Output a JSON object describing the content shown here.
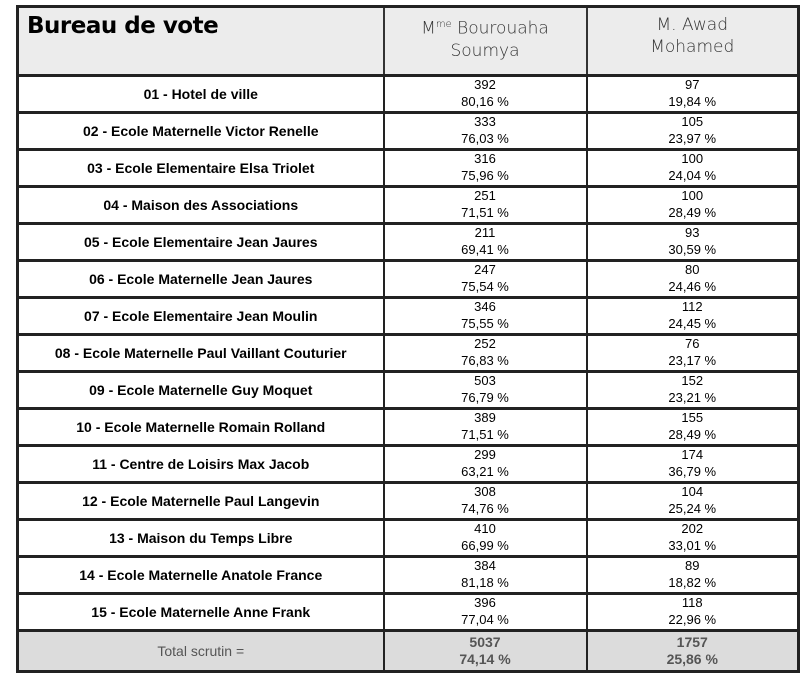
{
  "header": {
    "title": "Bureau de vote",
    "candidate1_prefix": "M",
    "candidate1_sup": "me",
    "candidate1_line1": " Bourouaha",
    "candidate1_line2": "Soumya",
    "candidate2_line1": "M. Awad",
    "candidate2_line2": "Mohamed"
  },
  "rows": [
    {
      "name": "01 - Hotel de ville",
      "v1": "392",
      "p1": "80,16 %",
      "v2": "97",
      "p2": "19,84 %"
    },
    {
      "name": "02 - Ecole Maternelle Victor Renelle",
      "v1": "333",
      "p1": "76,03 %",
      "v2": "105",
      "p2": "23,97 %"
    },
    {
      "name": "03 - Ecole Elementaire Elsa Triolet",
      "v1": "316",
      "p1": "75,96 %",
      "v2": "100",
      "p2": "24,04 %"
    },
    {
      "name": "04 - Maison des Associations",
      "v1": "251",
      "p1": "71,51 %",
      "v2": "100",
      "p2": "28,49 %"
    },
    {
      "name": "05 - Ecole Elementaire Jean Jaures",
      "v1": "211",
      "p1": "69,41 %",
      "v2": "93",
      "p2": "30,59 %"
    },
    {
      "name": "06 - Ecole Maternelle Jean Jaures",
      "v1": "247",
      "p1": "75,54 %",
      "v2": "80",
      "p2": "24,46 %"
    },
    {
      "name": "07 - Ecole Elementaire Jean Moulin",
      "v1": "346",
      "p1": "75,55 %",
      "v2": "112",
      "p2": "24,45 %"
    },
    {
      "name": "08 - Ecole Maternelle Paul Vaillant Couturier",
      "v1": "252",
      "p1": "76,83 %",
      "v2": "76",
      "p2": "23,17 %"
    },
    {
      "name": "09 - Ecole Maternelle Guy Moquet",
      "v1": "503",
      "p1": "76,79 %",
      "v2": "152",
      "p2": "23,21 %"
    },
    {
      "name": "10 - Ecole Maternelle Romain Rolland",
      "v1": "389",
      "p1": "71,51 %",
      "v2": "155",
      "p2": "28,49 %"
    },
    {
      "name": "11 - Centre de Loisirs Max Jacob",
      "v1": "299",
      "p1": "63,21 %",
      "v2": "174",
      "p2": "36,79 %"
    },
    {
      "name": "12 - Ecole Maternelle Paul Langevin",
      "v1": "308",
      "p1": "74,76 %",
      "v2": "104",
      "p2": "25,24 %"
    },
    {
      "name": "13 - Maison du Temps Libre",
      "v1": "410",
      "p1": "66,99 %",
      "v2": "202",
      "p2": "33,01 %"
    },
    {
      "name": "14 - Ecole Maternelle Anatole France",
      "v1": "384",
      "p1": "81,18 %",
      "v2": "89",
      "p2": "18,82 %"
    },
    {
      "name": "15 - Ecole Maternelle Anne Frank",
      "v1": "396",
      "p1": "77,04 %",
      "v2": "118",
      "p2": "22,96 %"
    }
  ],
  "total": {
    "label": "Total scrutin =",
    "v1": "5037",
    "p1": "74,14 %",
    "v2": "1757",
    "p2": "25,86 %"
  }
}
